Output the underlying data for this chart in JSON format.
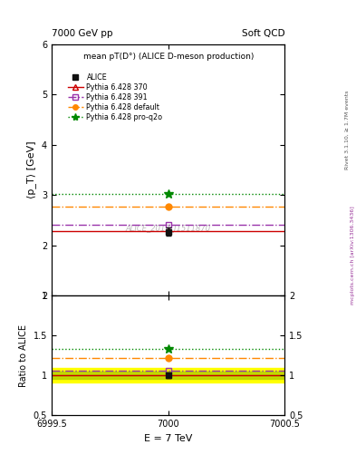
{
  "title_top_left": "7000 GeV pp",
  "title_top_right": "Soft QCD",
  "main_title": "mean pT(D°) (ALICE D-meson production)",
  "xlabel": "E = 7 TeV",
  "ylabel_main": "⟨p_T⟩ [GeV]",
  "ylabel_ratio": "Ratio to ALICE",
  "right_label": "Rivet 3.1.10, ≥ 1.7M events",
  "right_label2": "mcplots.cern.ch [arXiv:1306.3436]",
  "watermark": "ALICE_2017_I1511870",
  "x_center": 7000,
  "xlim": [
    6999.5,
    7000.5
  ],
  "ylim_main": [
    1.0,
    6.0
  ],
  "ylim_ratio": [
    0.5,
    2.0
  ],
  "alice_value": 2.27,
  "alice_err": 0.08,
  "alice_color": "#111111",
  "series": [
    {
      "label": "Pythia 6.428 370",
      "value": 2.28,
      "color": "#cc0000",
      "linestyle": "-",
      "marker": "^",
      "markerfacecolor": "none",
      "ratio": 1.004
    },
    {
      "label": "Pythia 6.428 391",
      "value": 2.4,
      "color": "#9933aa",
      "linestyle": "-.",
      "marker": "s",
      "markerfacecolor": "none",
      "ratio": 1.057
    },
    {
      "label": "Pythia 6.428 default",
      "value": 2.76,
      "color": "#ff8800",
      "linestyle": "-.",
      "marker": "o",
      "markerfacecolor": "#ff8800",
      "ratio": 1.216
    },
    {
      "label": "Pythia 6.428 pro-q2o",
      "value": 3.02,
      "color": "#008800",
      "linestyle": ":",
      "marker": "*",
      "markerfacecolor": "#008800",
      "ratio": 1.331
    }
  ],
  "alice_band_yellow": "#ffff00",
  "alice_band_green": "#aacc00",
  "alice_ratio_err": 0.035,
  "yticks_main": [
    1,
    2,
    3,
    4,
    5,
    6
  ],
  "yticks_ratio": [
    0.5,
    1.0,
    1.5,
    2.0
  ]
}
